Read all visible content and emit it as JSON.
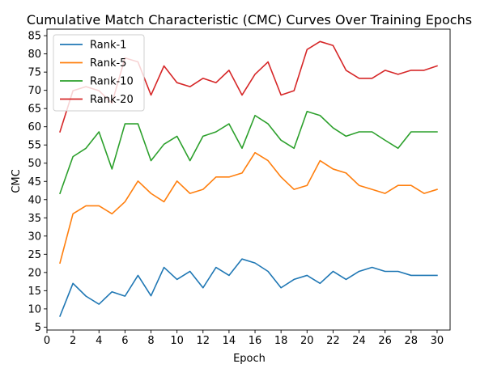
{
  "chart_data": {
    "type": "line",
    "title": "Cumulative Match Characteristic (CMC) Curves Over Training Epochs",
    "xlabel": "Epoch",
    "ylabel": "CMC",
    "xlim": [
      0,
      31
    ],
    "ylim": [
      4.2,
      86.8
    ],
    "xticks": [
      0,
      2,
      4,
      6,
      8,
      10,
      12,
      14,
      16,
      18,
      20,
      22,
      24,
      26,
      28,
      30
    ],
    "yticks": [
      5,
      10,
      15,
      20,
      25,
      30,
      35,
      40,
      45,
      50,
      55,
      60,
      65,
      70,
      75,
      80,
      85
    ],
    "grid": false,
    "legend_position": "upper left",
    "x": [
      1,
      2,
      3,
      4,
      5,
      6,
      7,
      8,
      9,
      10,
      11,
      12,
      13,
      14,
      15,
      16,
      17,
      18,
      19,
      20,
      21,
      22,
      23,
      24,
      25,
      26,
      27,
      28,
      29,
      30
    ],
    "series": [
      {
        "name": "Rank-1",
        "color": "#1f77b4",
        "values": [
          8.0,
          17.0,
          13.5,
          11.3,
          14.7,
          13.5,
          19.2,
          13.6,
          21.4,
          18.1,
          20.3,
          15.8,
          21.4,
          19.2,
          23.7,
          22.6,
          20.3,
          15.8,
          18.1,
          19.2,
          17.0,
          20.3,
          18.1,
          20.3,
          21.4,
          20.3,
          20.3,
          19.2,
          19.2,
          19.2
        ]
      },
      {
        "name": "Rank-5",
        "color": "#ff7f0e",
        "values": [
          22.6,
          36.1,
          38.3,
          38.3,
          36.1,
          39.4,
          45.1,
          41.7,
          39.4,
          45.1,
          41.7,
          42.8,
          46.2,
          46.2,
          47.3,
          52.9,
          50.7,
          46.2,
          42.8,
          43.9,
          50.7,
          48.4,
          47.3,
          43.9,
          42.8,
          41.7,
          43.9,
          43.9,
          41.7,
          42.8
        ]
      },
      {
        "name": "Rank-10",
        "color": "#2ca02c",
        "values": [
          41.7,
          51.8,
          54.1,
          58.6,
          48.4,
          60.8,
          60.8,
          50.7,
          55.2,
          57.4,
          50.7,
          57.4,
          58.6,
          60.8,
          54.1,
          63.1,
          60.8,
          56.3,
          54.1,
          64.2,
          63.1,
          59.7,
          57.4,
          58.6,
          58.6,
          56.3,
          54.1,
          58.6,
          58.6,
          58.6
        ]
      },
      {
        "name": "Rank-20",
        "color": "#d62728",
        "values": [
          58.6,
          69.9,
          71.0,
          69.9,
          66.5,
          78.9,
          77.8,
          68.7,
          76.7,
          72.1,
          71.0,
          73.3,
          72.1,
          75.5,
          68.7,
          74.4,
          77.8,
          68.7,
          69.9,
          81.2,
          83.4,
          82.3,
          75.5,
          73.3,
          73.3,
          75.5,
          74.4,
          75.5,
          75.5,
          76.7
        ]
      }
    ]
  }
}
